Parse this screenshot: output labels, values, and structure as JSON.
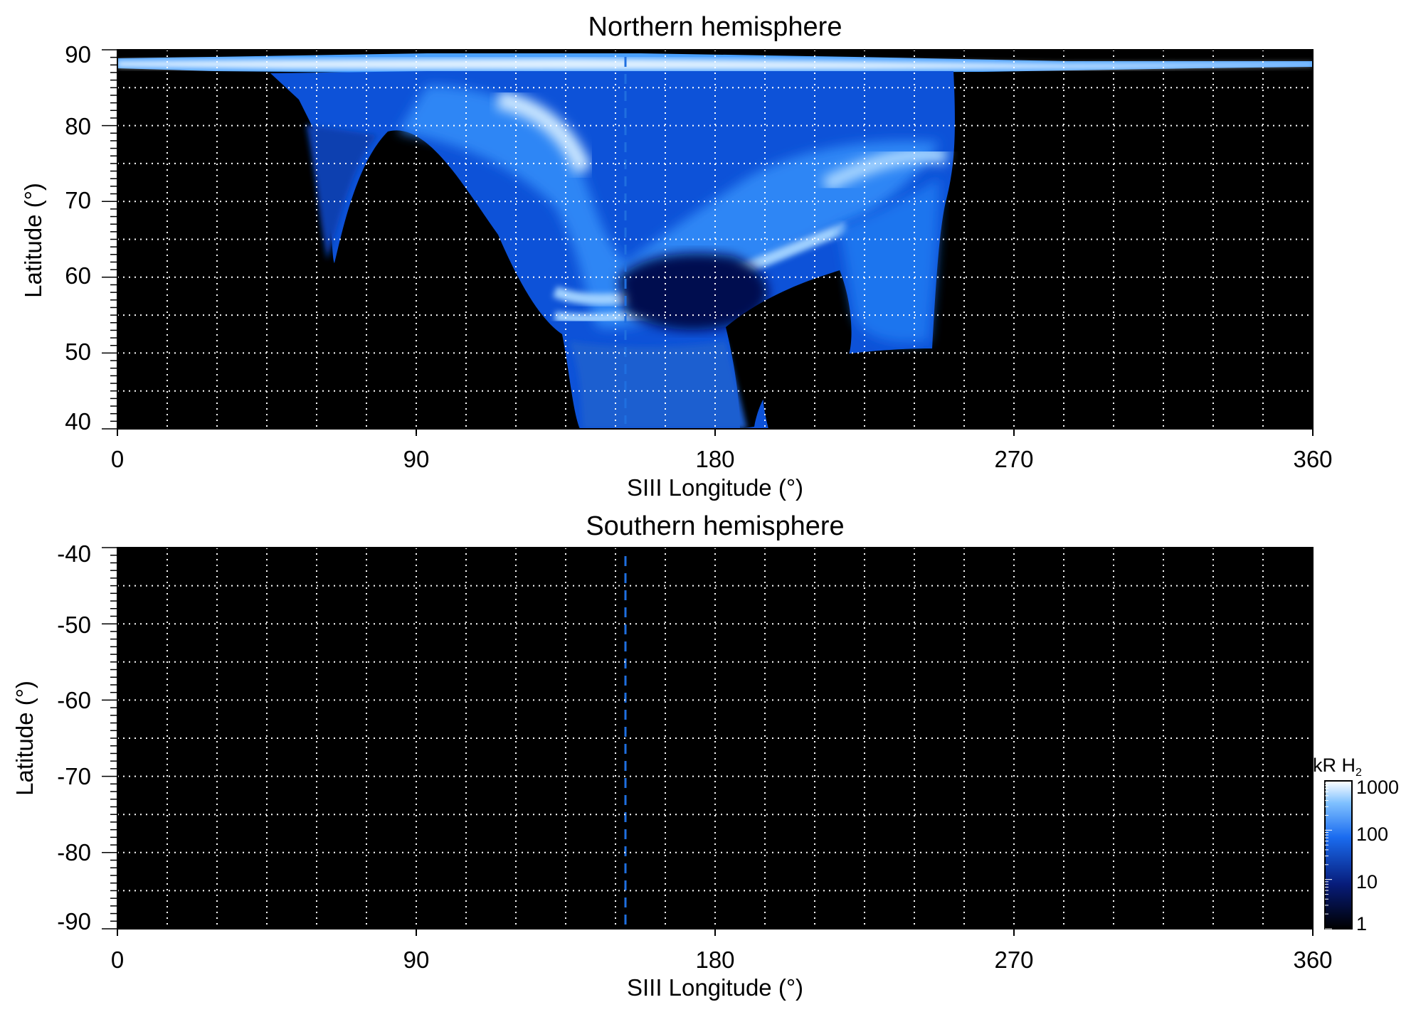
{
  "colors": {
    "background": "#000000",
    "emission_low": "#000814",
    "emission_mid": "#0a5fe0",
    "emission_high": "#e8f4ff",
    "dashed_line": "#1f6fe0",
    "grid": "#ffffff"
  },
  "colorbar": {
    "label": "kR H",
    "label_sub": "2",
    "scale": "log",
    "ticks": [
      "1000",
      "100",
      "10",
      "1"
    ]
  },
  "chart_data": [
    {
      "type": "heatmap",
      "title": "Northern hemisphere",
      "xlabel": "SIII Longitude (°)",
      "ylabel": "Latitude (°)",
      "xlim": [
        0,
        360
      ],
      "ylim": [
        40,
        90
      ],
      "xticks": [
        "0",
        "90",
        "180",
        "270",
        "360"
      ],
      "yticks": [
        "40",
        "50",
        "60",
        "70",
        "80",
        "90"
      ],
      "grid": true,
      "dashed_line_longitude": 154,
      "main_oval_longitudes": [
        [
          55,
          260
        ]
      ],
      "emission_kR_range": [
        1,
        1000
      ]
    },
    {
      "type": "heatmap",
      "title": "Southern hemisphere",
      "xlabel": "SIII Longitude (°)",
      "ylabel": "Latitude (°)",
      "xlim": [
        0,
        360
      ],
      "ylim": [
        -90,
        -40
      ],
      "xticks": [
        "0",
        "90",
        "180",
        "270",
        "360"
      ],
      "yticks": [
        "-40",
        "-50",
        "-60",
        "-70",
        "-80",
        "-90"
      ],
      "grid": true,
      "dashed_line_longitude": 154,
      "emission_kR_range": [
        1,
        1
      ]
    }
  ]
}
